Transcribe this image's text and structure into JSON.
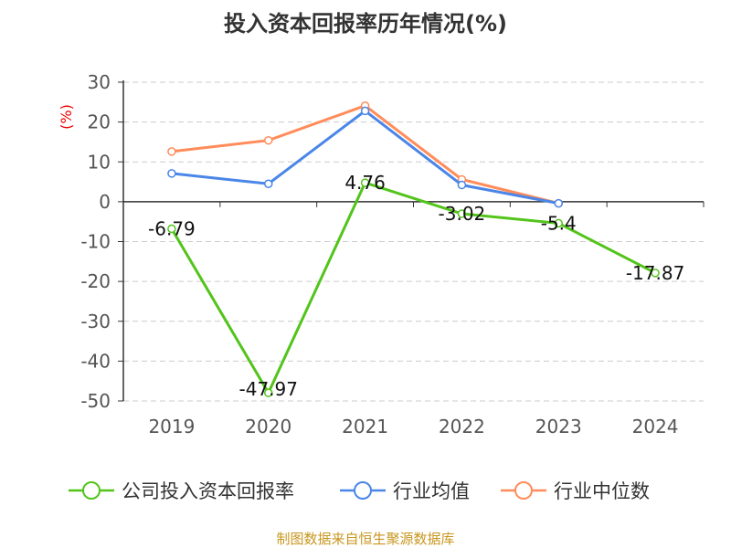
{
  "chart_data": {
    "type": "line",
    "title": "投入资本回报率历年情况(%)",
    "ylabel": "(%)",
    "categories": [
      "2019",
      "2020",
      "2021",
      "2022",
      "2023",
      "2024"
    ],
    "ylim": [
      -50,
      30
    ],
    "yticks": [
      30,
      20,
      10,
      0,
      -10,
      -20,
      -30,
      -40,
      -50
    ],
    "grid": true,
    "legend_position": "bottom",
    "series": [
      {
        "name": "公司投入资本回报率",
        "color": "#52c41a",
        "values": [
          -6.79,
          -47.97,
          4.76,
          -3.02,
          -5.4,
          -17.87
        ],
        "labels": [
          "-6.79",
          "-47.97",
          "4.76",
          "-3.02",
          "-5.4",
          "-17.87"
        ]
      },
      {
        "name": "行业均值",
        "color": "#4a86e8",
        "values": [
          7.1,
          4.5,
          22.8,
          4.2,
          -0.4,
          null
        ]
      },
      {
        "name": "行业中位数",
        "color": "#ff8c5a",
        "values": [
          12.6,
          15.4,
          24.1,
          5.6,
          -0.4,
          null
        ]
      }
    ]
  },
  "source": "制图数据来自恒生聚源数据库"
}
